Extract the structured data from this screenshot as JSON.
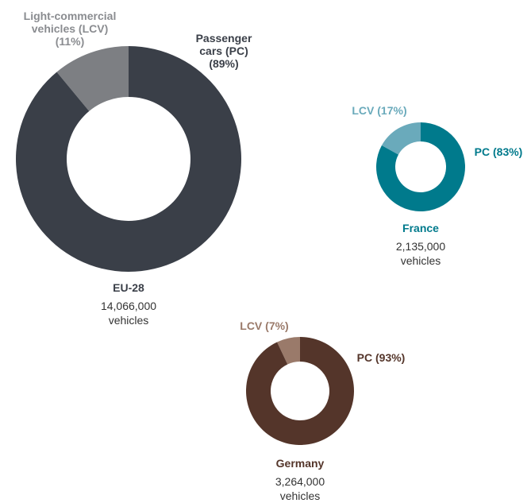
{
  "chart_data": [
    {
      "type": "pie",
      "title": "EU-28",
      "subtitle": [
        "14,066,000",
        "vehicles"
      ],
      "categories": [
        "Light-commercial vehicles (LCV)",
        "Passenger cars (PC)"
      ],
      "values": [
        11,
        89
      ],
      "value_labels": [
        "(11%)",
        "(89%)"
      ],
      "colors": [
        "#7d7f83",
        "#3a3f48"
      ]
    },
    {
      "type": "pie",
      "title": "France",
      "subtitle": [
        "2,135,000",
        "vehicles"
      ],
      "categories": [
        "LCV",
        "PC"
      ],
      "values": [
        17,
        83
      ],
      "value_labels": [
        "(17%)",
        "(83%)"
      ],
      "colors": [
        "#6aaabb",
        "#007a8c"
      ]
    },
    {
      "type": "pie",
      "title": "Germany",
      "subtitle": [
        "3,264,000",
        "vehicles"
      ],
      "categories": [
        "LCV",
        "PC"
      ],
      "values": [
        7,
        93
      ],
      "value_labels": [
        "(7%)",
        "(93%)"
      ],
      "colors": [
        "#9a7a6a",
        "#54352a"
      ]
    }
  ]
}
